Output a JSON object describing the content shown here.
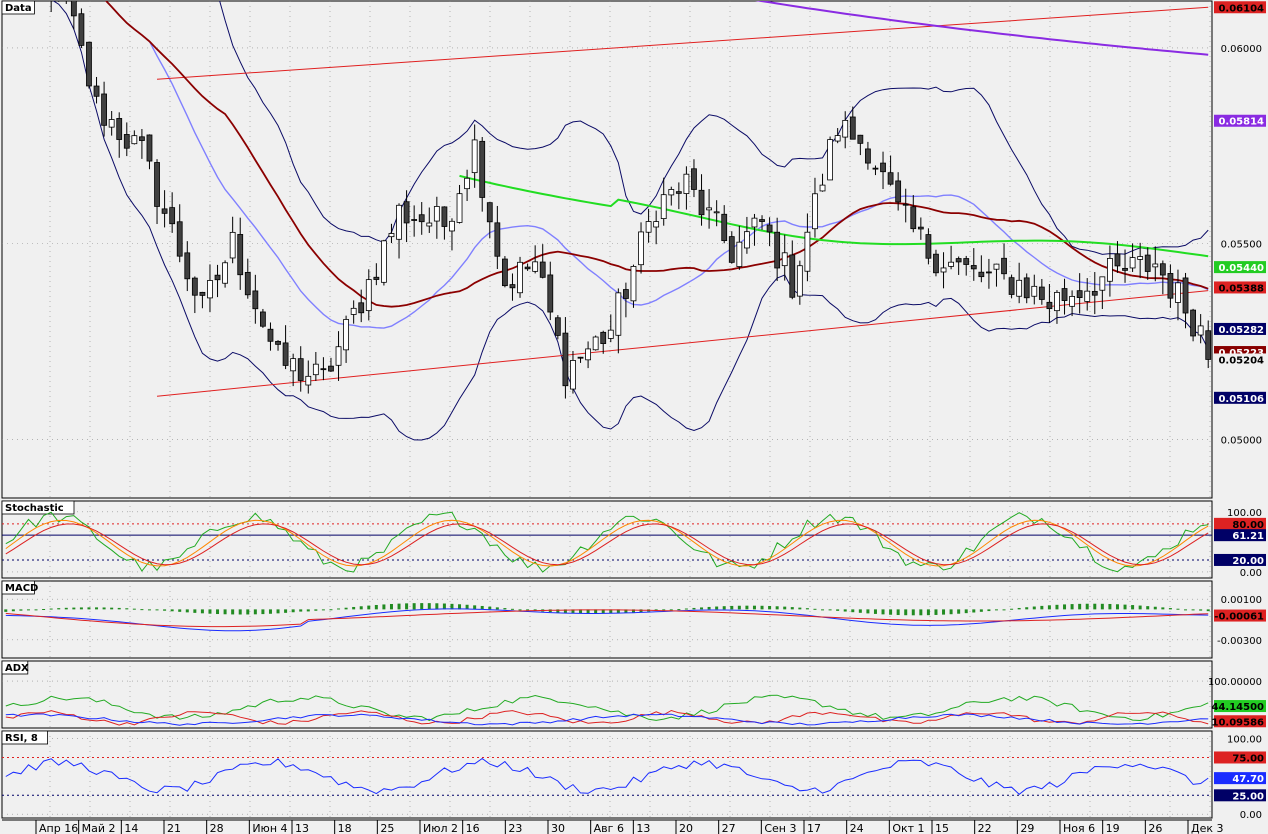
{
  "colors": {
    "background": "#f0f0f0",
    "grid": "#8c8c8c",
    "candle_up": "#ffffff",
    "candle_down": "#404040",
    "bollinger": "#0b0b66",
    "bollinger_mid": "#8080ff",
    "ma_dark_red": "#8b0000",
    "ma_green": "#22dd22",
    "ma_purple": "#8a2be2",
    "channel": "#e02020",
    "tag_red": "#dd2222",
    "tag_purple": "#8a2be2",
    "tag_green": "#22cc22",
    "tag_navy": "#000066",
    "tag_darkred": "#880000",
    "tag_blue": "#1a2cff"
  },
  "chart_data": [
    {
      "pane": "price",
      "type": "candlestick",
      "title": "Data",
      "ylim": [
        0.0485,
        0.0612
      ],
      "y_ticks": [
        "0.06000",
        "0.05500",
        "0.05000"
      ],
      "y_tick_values": [
        0.06,
        0.055,
        0.05
      ],
      "x_labels": [
        "Апр 16",
        "Май 2",
        "14",
        "21",
        "28",
        "Июн 4",
        "13",
        "18",
        "25",
        "Июл 2",
        "16",
        "23",
        "30",
        "Авг 6",
        "13",
        "20",
        "27",
        "Сен 3",
        "17",
        "24",
        "Окт 1",
        "15",
        "22",
        "29",
        "Ноя 6",
        "19",
        "26",
        "Дек 3"
      ],
      "bars": 160,
      "close_path": [
        [
          0,
          0.0632
        ],
        [
          8,
          0.0612
        ],
        [
          12,
          0.0585
        ],
        [
          18,
          0.0573
        ],
        [
          26,
          0.0533
        ],
        [
          30,
          0.055
        ],
        [
          36,
          0.052
        ],
        [
          42,
          0.0515
        ],
        [
          48,
          0.054
        ],
        [
          52,
          0.0558
        ],
        [
          58,
          0.0555
        ],
        [
          62,
          0.0575
        ],
        [
          66,
          0.054
        ],
        [
          70,
          0.0545
        ],
        [
          74,
          0.0518
        ],
        [
          80,
          0.0528
        ],
        [
          86,
          0.056
        ],
        [
          90,
          0.0565
        ],
        [
          96,
          0.0548
        ],
        [
          100,
          0.0555
        ],
        [
          104,
          0.054
        ],
        [
          110,
          0.058
        ],
        [
          114,
          0.0575
        ],
        [
          118,
          0.0558
        ],
        [
          122,
          0.0548
        ],
        [
          128,
          0.0542
        ],
        [
          134,
          0.054
        ],
        [
          138,
          0.0535
        ],
        [
          146,
          0.0542
        ],
        [
          152,
          0.0545
        ],
        [
          158,
          0.0528
        ],
        [
          164,
          0.051
        ],
        [
          172,
          0.0522
        ]
      ],
      "last_close": 0.05204,
      "overlays": [
        {
          "name": "",
          "kind": "bollinger_upper",
          "color_key": "bollinger"
        },
        {
          "name": "",
          "kind": "bollinger_lower",
          "color_key": "bollinger"
        },
        {
          "name": "",
          "kind": "bollinger_mid",
          "color_key": "bollinger_mid"
        },
        {
          "name": "",
          "kind": "ma_dark_red",
          "color_key": "ma_dark_red",
          "last": 0.05223
        },
        {
          "name": "",
          "kind": "ma_green",
          "start": 0.0622,
          "color_key": "ma_green",
          "last": 0.0544
        },
        {
          "name": "",
          "kind": "ma_purple",
          "start": 0.0665,
          "color_key": "ma_purple",
          "last": 0.05814
        }
      ],
      "channel_lines": [
        {
          "from": [
            20,
            0.0592
          ],
          "to": [
            160,
            0.06104
          ]
        },
        {
          "from": [
            20,
            0.0511
          ],
          "to": [
            160,
            0.0538
          ]
        }
      ],
      "tags": [
        {
          "text": "0.06104",
          "value": 0.06104,
          "bg": "tag_red",
          "fg": "#000000"
        },
        {
          "text": "0.05814",
          "value": 0.05814,
          "bg": "tag_purple",
          "fg": "#ffffff"
        },
        {
          "text": "0.05440",
          "value": 0.0544,
          "bg": "tag_green",
          "fg": "#ffffff"
        },
        {
          "text": "0.05388",
          "value": 0.05388,
          "bg": "tag_red",
          "fg": "#000000"
        },
        {
          "text": "0.05282",
          "value": 0.05282,
          "bg": "tag_navy",
          "fg": "#ffffff"
        },
        {
          "text": "0.05223",
          "value": 0.05223,
          "bg": "tag_darkred",
          "fg": "#ffffff"
        },
        {
          "text": "0.05204",
          "value": 0.05204,
          "bg": "#f0f0f0",
          "fg": "#000000"
        },
        {
          "text": "0.05106",
          "value": 0.05106,
          "bg": "tag_navy",
          "fg": "#ffffff"
        }
      ]
    },
    {
      "pane": "stochastic",
      "type": "line",
      "title": "Stochastic",
      "ylim": [
        -10,
        118
      ],
      "y_ticks": [
        "100.00",
        "0.00"
      ],
      "y_tick_values": [
        100,
        0
      ],
      "levels": [
        80,
        20
      ],
      "tags": [
        {
          "text": "80.00",
          "value": 80,
          "bg": "tag_red",
          "fg": "#000000"
        },
        {
          "text": "61.21",
          "value": 61.21,
          "bg": "tag_navy",
          "fg": "#ffffff"
        },
        {
          "text": "20.00",
          "value": 20,
          "bg": "tag_navy",
          "fg": "#ffffff"
        }
      ]
    },
    {
      "pane": "macd",
      "type": "line",
      "title": "MACD",
      "ylim": [
        -0.0048,
        0.0028
      ],
      "y_ticks": [
        "0.00100",
        "-0.00300"
      ],
      "y_tick_values": [
        0.001,
        -0.003
      ],
      "tags": [
        {
          "text": "-0.00061",
          "value": -0.00061,
          "bg": "tag_red",
          "fg": "#000000"
        }
      ]
    },
    {
      "pane": "adx",
      "type": "line",
      "title": "ADX",
      "ylim": [
        -5,
        145
      ],
      "y_ticks": [
        "100.00000"
      ],
      "y_tick_values": [
        100
      ],
      "tags": [
        {
          "text": "44.14500",
          "value": 44.145,
          "bg": "tag_green",
          "fg": "#000000"
        },
        {
          "text": "10.09586",
          "value": 10.09586,
          "bg": "tag_red",
          "fg": "#000000"
        }
      ]
    },
    {
      "pane": "rsi",
      "type": "line",
      "title": "RSI, 8",
      "ylim": [
        -5,
        110
      ],
      "y_ticks": [
        "100.00",
        "0.00"
      ],
      "y_tick_values": [
        100,
        0
      ],
      "levels": [
        75,
        25
      ],
      "last": 47.7,
      "tags": [
        {
          "text": "75.00",
          "value": 75,
          "bg": "tag_red",
          "fg": "#000000"
        },
        {
          "text": "47.70",
          "value": 47.7,
          "bg": "tag_blue",
          "fg": "#ffffff"
        },
        {
          "text": "25.00",
          "value": 25,
          "bg": "tag_navy",
          "fg": "#ffffff"
        }
      ]
    }
  ]
}
